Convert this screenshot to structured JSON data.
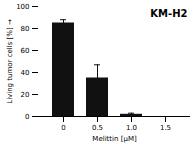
{
  "chart_data": {
    "type": "bar",
    "title": "KM-H2",
    "xlabel": "Melittin [μM]",
    "ylabel": "Living tumor cells [%]",
    "categories": [
      "0",
      "0.5",
      "1.0",
      "1.5"
    ],
    "values": [
      85,
      35,
      2,
      0
    ],
    "errors": [
      3,
      12,
      1,
      0
    ],
    "color": "#111111",
    "ylim": [
      0,
      100
    ],
    "yticks": [
      0,
      20,
      40,
      60,
      80,
      100
    ]
  }
}
